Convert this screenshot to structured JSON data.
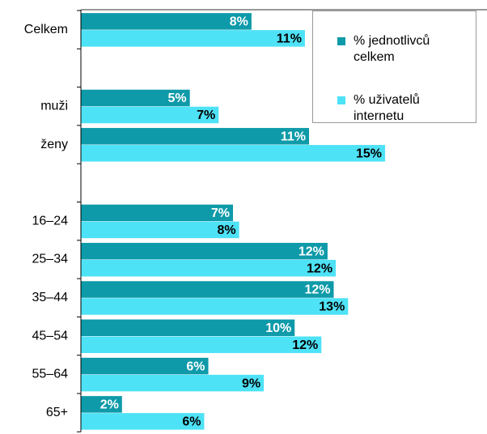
{
  "chart_data": {
    "type": "hbar",
    "categories": [
      "Celkem",
      null,
      "muži",
      "ženy",
      null,
      "16–24",
      "25–34",
      "35–44",
      "45–54",
      "55–64",
      "65+"
    ],
    "series": [
      {
        "name": "% jednotlivců celkem",
        "color": "#0e9aa9",
        "values": [
          8.3,
          null,
          5.3,
          11.1,
          null,
          7.4,
          12.0,
          12.3,
          10.4,
          6.2,
          2.0
        ],
        "value_labels": [
          "8%",
          null,
          "5%",
          "11%",
          null,
          "7%",
          "12%",
          "12%",
          "10%",
          "6%",
          "2%"
        ]
      },
      {
        "name": "% uživatelů internetu",
        "color": "#4ee2f6",
        "values": [
          10.9,
          null,
          6.7,
          14.8,
          null,
          7.7,
          12.4,
          13.0,
          11.7,
          8.9,
          6.0
        ],
        "value_labels": [
          "11%",
          null,
          "7%",
          "15%",
          null,
          "8%",
          "12%",
          "13%",
          "12%",
          "9%",
          "6%"
        ]
      }
    ],
    "xlim": [
      0,
      19.6
    ],
    "legend": "upper right"
  }
}
